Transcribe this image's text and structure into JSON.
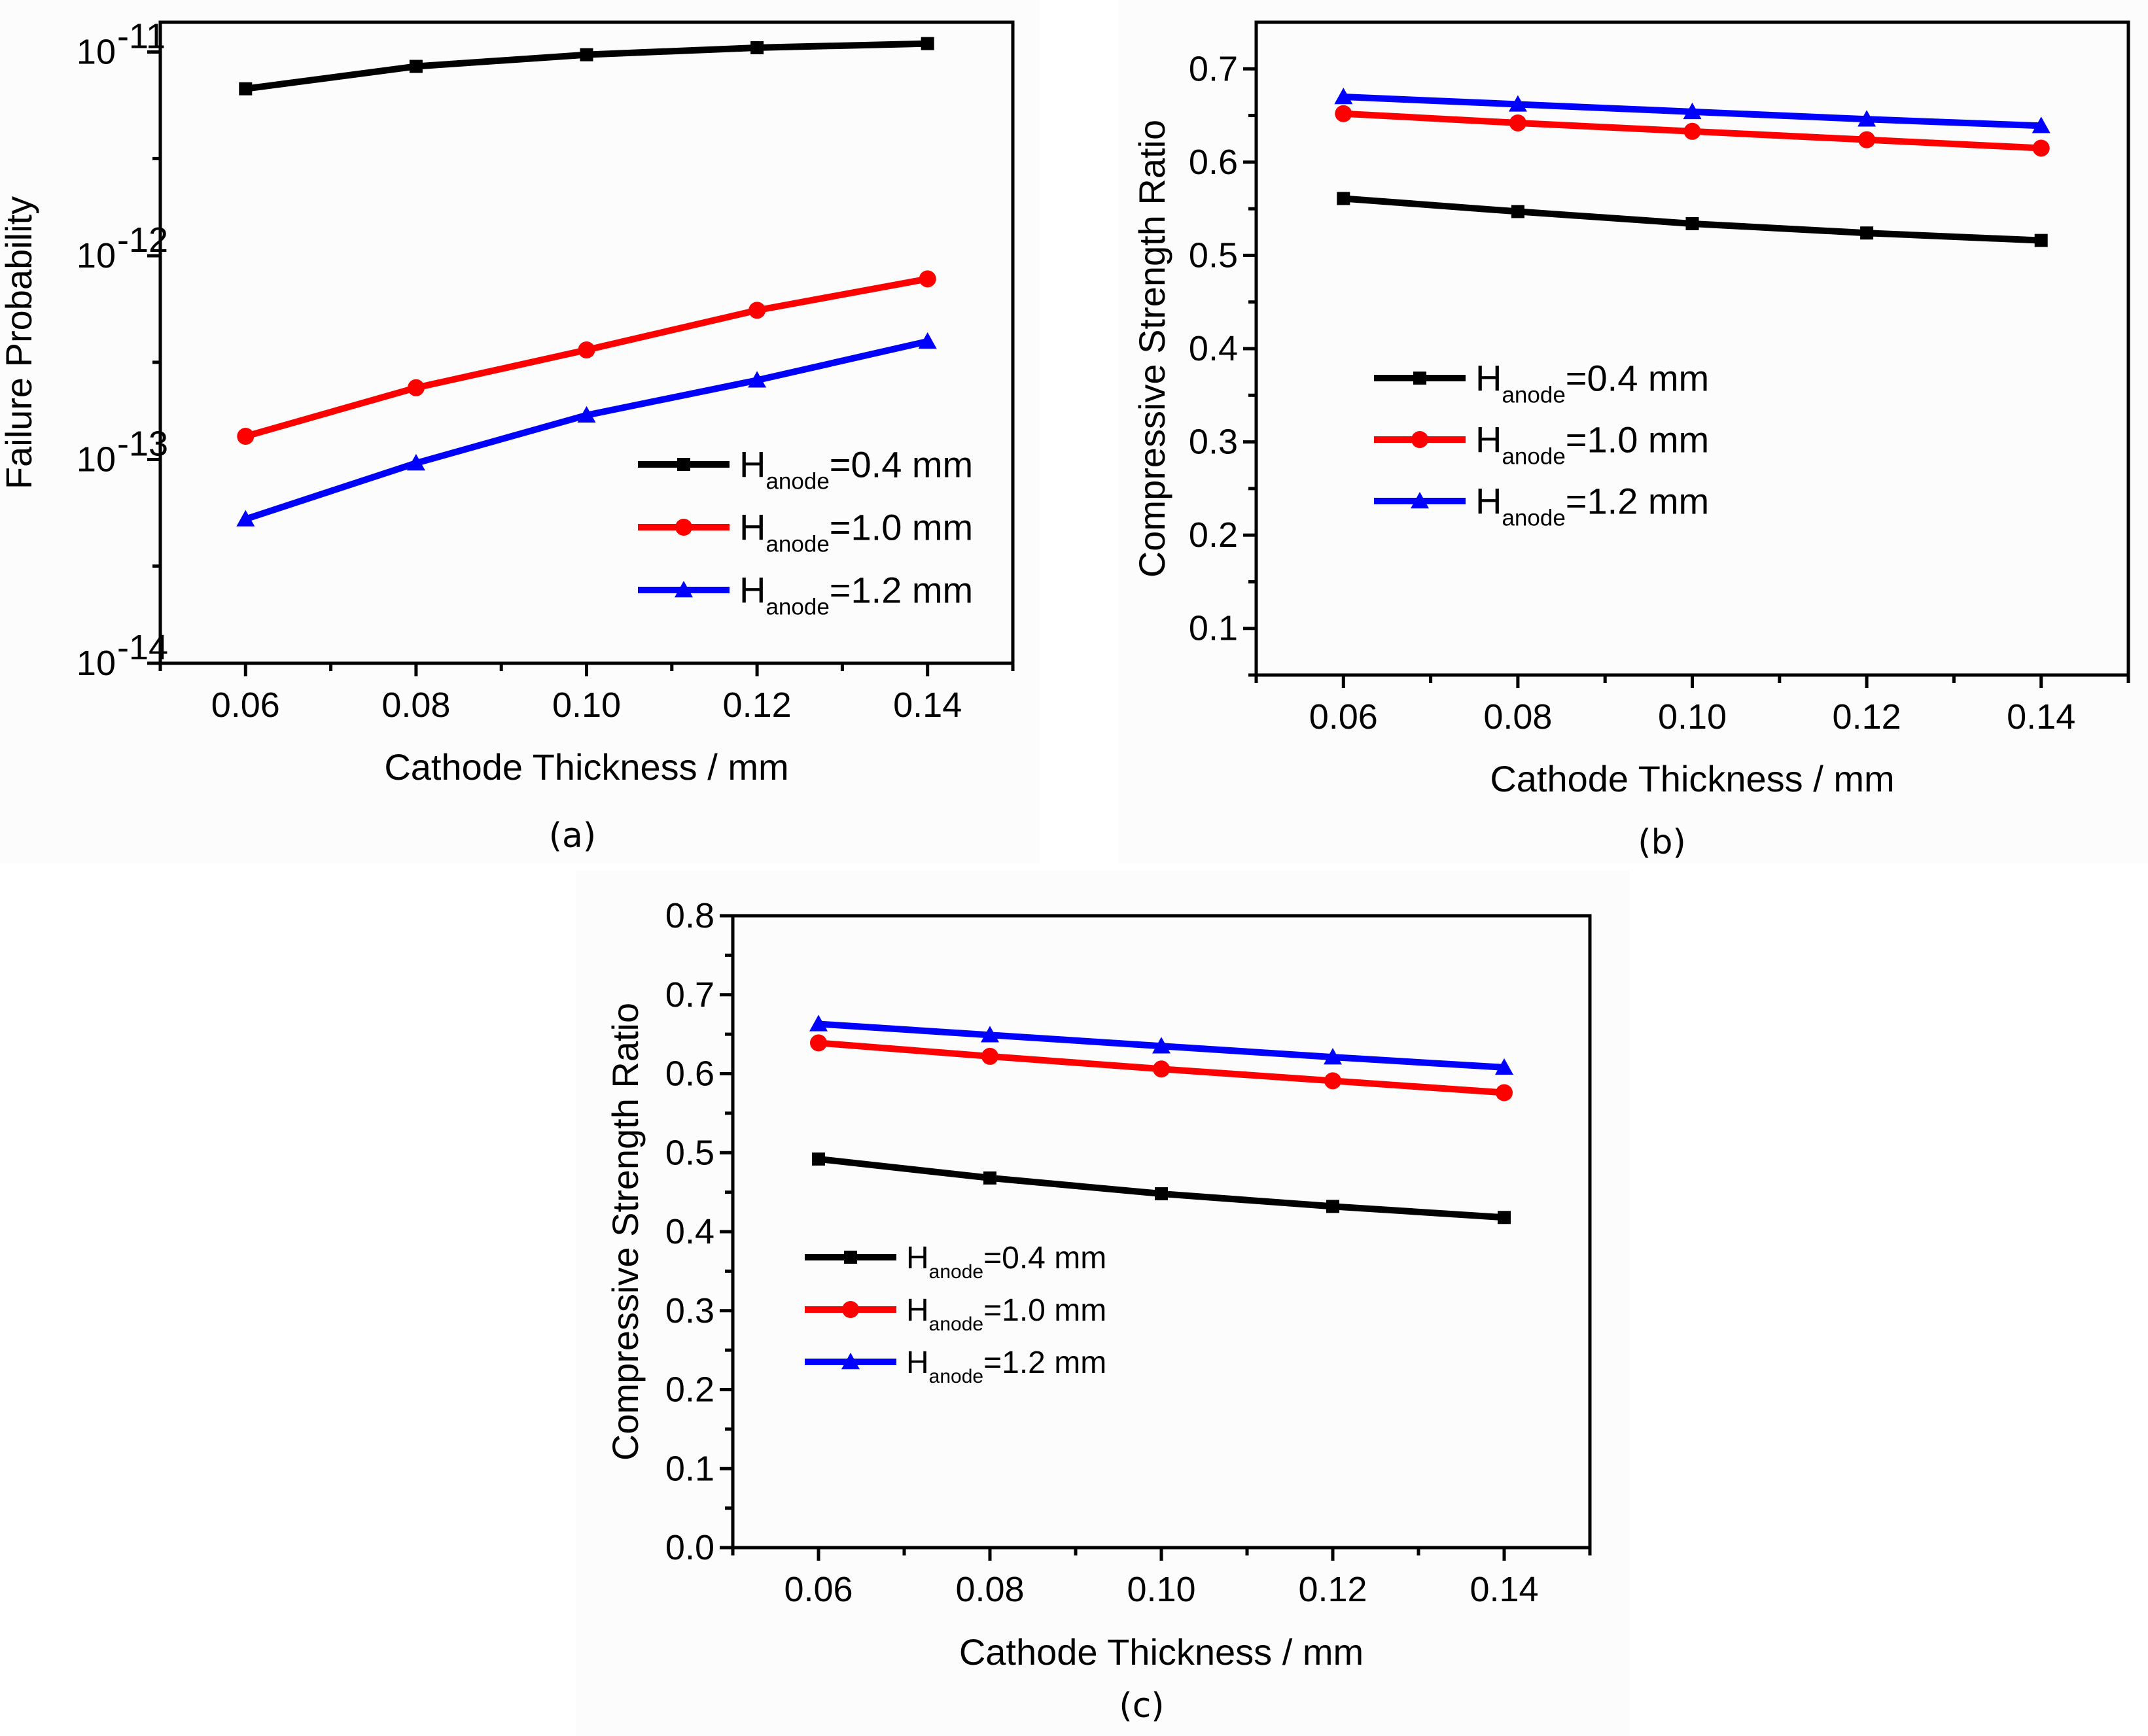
{
  "chart_data": [
    {
      "id": "a",
      "type": "line",
      "caption": "(a)",
      "xlabel": "Cathode Thickness / mm",
      "ylabel": "Failure Probability",
      "yscale": "log",
      "xlim": [
        0.05,
        0.15
      ],
      "ylim": [
        1e-14,
        1.4e-11
      ],
      "x": [
        0.06,
        0.08,
        0.1,
        0.12,
        0.14
      ],
      "xticks": [
        "0.06",
        "0.08",
        "0.10",
        "0.12",
        "0.14"
      ],
      "yticks": [
        {
          "base": "10",
          "exp": "-11"
        },
        {
          "base": "10",
          "exp": "-12"
        },
        {
          "base": "10",
          "exp": "-13"
        },
        {
          "base": "10",
          "exp": "-14"
        }
      ],
      "legend_position": "lower-right",
      "series": [
        {
          "name": "H",
          "sub": "anode",
          "suffix": "=0.4 mm",
          "color": "#000000",
          "marker": "square",
          "values": [
            6.6e-12,
            8.5e-12,
            9.7e-12,
            1.05e-11,
            1.1e-11
          ]
        },
        {
          "name": "H",
          "sub": "anode",
          "suffix": "=1.0 mm",
          "color": "#ff0000",
          "marker": "circle",
          "values": [
            1.3e-13,
            2.25e-13,
            3.45e-13,
            5.4e-13,
            7.7e-13
          ]
        },
        {
          "name": "H",
          "sub": "anode",
          "suffix": "=1.2 mm",
          "color": "#0000ff",
          "marker": "triangle",
          "values": [
            5.1e-14,
            9.6e-14,
            1.65e-13,
            2.45e-13,
            3.8e-13
          ]
        }
      ]
    },
    {
      "id": "b",
      "type": "line",
      "caption": "(b)",
      "xlabel": "Cathode Thickness / mm",
      "ylabel": "Compressive Strength Ratio",
      "yscale": "linear",
      "xlim": [
        0.05,
        0.15
      ],
      "ylim": [
        0.05,
        0.75
      ],
      "x": [
        0.06,
        0.08,
        0.1,
        0.12,
        0.14
      ],
      "xticks": [
        "0.06",
        "0.08",
        "0.10",
        "0.12",
        "0.14"
      ],
      "yticks": [
        "0.1",
        "0.2",
        "0.3",
        "0.4",
        "0.5",
        "0.6",
        "0.7"
      ],
      "legend_position": "center-left",
      "series": [
        {
          "name": "H",
          "sub": "anode",
          "suffix": "=0.4 mm",
          "color": "#000000",
          "marker": "square",
          "values": [
            0.561,
            0.547,
            0.534,
            0.524,
            0.516
          ]
        },
        {
          "name": "H",
          "sub": "anode",
          "suffix": "=1.0 mm",
          "color": "#ff0000",
          "marker": "circle",
          "values": [
            0.652,
            0.642,
            0.633,
            0.624,
            0.615
          ]
        },
        {
          "name": "H",
          "sub": "anode",
          "suffix": "=1.2 mm",
          "color": "#0000ff",
          "marker": "triangle",
          "values": [
            0.67,
            0.662,
            0.654,
            0.646,
            0.639
          ]
        }
      ]
    },
    {
      "id": "c",
      "type": "line",
      "caption": "(c)",
      "xlabel": "Cathode Thickness / mm",
      "ylabel": "Compressive Strength Ratio",
      "yscale": "linear",
      "xlim": [
        0.05,
        0.15
      ],
      "ylim": [
        0.0,
        0.8
      ],
      "x": [
        0.06,
        0.08,
        0.1,
        0.12,
        0.14
      ],
      "xticks": [
        "0.06",
        "0.08",
        "0.10",
        "0.12",
        "0.14"
      ],
      "yticks": [
        "0.0",
        "0.1",
        "0.2",
        "0.3",
        "0.4",
        "0.5",
        "0.6",
        "0.7",
        "0.8"
      ],
      "legend_position": "lower-left",
      "series": [
        {
          "name": "H",
          "sub": "anode",
          "suffix": "=0.4 mm",
          "color": "#000000",
          "marker": "square",
          "values": [
            0.492,
            0.468,
            0.448,
            0.432,
            0.418
          ]
        },
        {
          "name": "H",
          "sub": "anode",
          "suffix": "=1.0 mm",
          "color": "#ff0000",
          "marker": "circle",
          "values": [
            0.639,
            0.622,
            0.606,
            0.591,
            0.576
          ]
        },
        {
          "name": "H",
          "sub": "anode",
          "suffix": "=1.2 mm",
          "color": "#0000ff",
          "marker": "triangle",
          "values": [
            0.663,
            0.649,
            0.635,
            0.621,
            0.608
          ]
        }
      ]
    }
  ]
}
